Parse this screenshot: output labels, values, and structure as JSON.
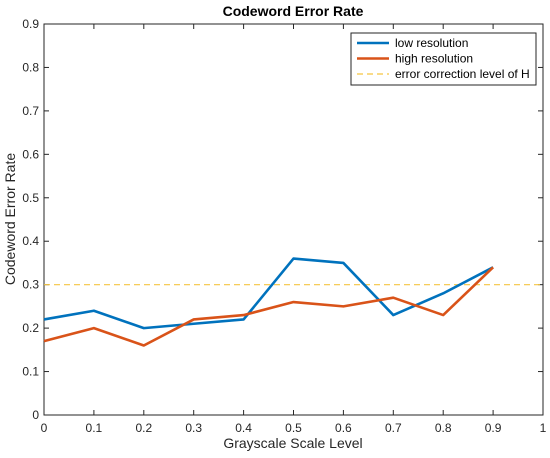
{
  "chart_data": {
    "type": "line",
    "title": "Codeword Error Rate",
    "xlabel": "Grayscale Scale Level",
    "ylabel": "Codeword Error Rate",
    "xlim": [
      0,
      1
    ],
    "ylim": [
      0,
      0.9
    ],
    "xticks": [
      0,
      0.1,
      0.2,
      0.3,
      0.4,
      0.5,
      0.6,
      0.7,
      0.8,
      0.9,
      1
    ],
    "xtick_labels": [
      "0",
      "0.1",
      "0.2",
      "0.3",
      "0.4",
      "0.5",
      "0.6",
      "0.7",
      "0.8",
      "0.9",
      "1"
    ],
    "yticks": [
      0,
      0.1,
      0.2,
      0.3,
      0.4,
      0.5,
      0.6,
      0.7,
      0.8,
      0.9
    ],
    "ytick_labels": [
      "0",
      "0.1",
      "0.2",
      "0.3",
      "0.4",
      "0.5",
      "0.6",
      "0.7",
      "0.8",
      "0.9"
    ],
    "grid": false,
    "legend_position": "top-right",
    "x": [
      0,
      0.1,
      0.2,
      0.3,
      0.4,
      0.5,
      0.6,
      0.7,
      0.8,
      0.9
    ],
    "series": [
      {
        "name": "low resolution",
        "color": "#0072BD",
        "values": [
          0.22,
          0.24,
          0.2,
          0.21,
          0.22,
          0.36,
          0.35,
          0.23,
          0.28,
          0.34
        ]
      },
      {
        "name": "high resolution",
        "color": "#D95319",
        "values": [
          0.17,
          0.2,
          0.16,
          0.22,
          0.23,
          0.26,
          0.25,
          0.27,
          0.23,
          0.34
        ]
      }
    ],
    "reference_line": {
      "name": "error correction level of H",
      "y": 0.3,
      "color": "#F5C542",
      "style": "dashed"
    }
  }
}
